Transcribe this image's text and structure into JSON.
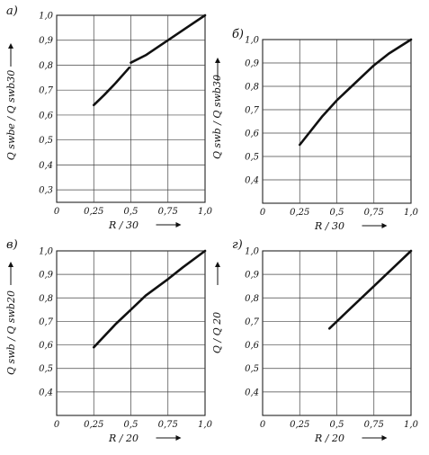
{
  "chart_data": [
    {
      "type": "line",
      "panel_label": "а)",
      "xlabel": "R / 30",
      "ylabel": "Q swbe / Q swb30",
      "xlim": [
        0,
        1.0
      ],
      "ylim": [
        0.25,
        1.0
      ],
      "x_ticks": [
        "0",
        "0,25",
        "0,5",
        "0,75",
        "1,0"
      ],
      "y_ticks": [
        "0,3",
        "0,4",
        "0,5",
        "0,6",
        "0,7",
        "0,8",
        "0,9",
        "1,0"
      ],
      "series": [
        {
          "segments": [
            {
              "x": [
                0.25,
                0.32,
                0.4,
                0.49
              ],
              "y": [
                0.64,
                0.68,
                0.73,
                0.79
              ]
            },
            {
              "x": [
                0.5,
                0.6,
                0.7,
                0.8,
                0.9,
                1.0
              ],
              "y": [
                0.81,
                0.84,
                0.88,
                0.92,
                0.96,
                1.0
              ]
            }
          ]
        }
      ]
    },
    {
      "type": "line",
      "panel_label": "б)",
      "xlabel": "R / 30",
      "ylabel": "Q swb / Q swb30",
      "xlim": [
        0,
        1.0
      ],
      "ylim": [
        0.3,
        1.0
      ],
      "x_ticks": [
        "0",
        "0,25",
        "0,5",
        "0,75",
        "1,0"
      ],
      "y_ticks": [
        "0,4",
        "0,5",
        "0,6",
        "0,7",
        "0,8",
        "0,9",
        "1,0"
      ],
      "series": [
        {
          "segments": [
            {
              "x": [
                0.25,
                0.4,
                0.5,
                0.6,
                0.75,
                0.85,
                1.0
              ],
              "y": [
                0.55,
                0.67,
                0.74,
                0.8,
                0.89,
                0.94,
                1.0
              ]
            }
          ]
        }
      ]
    },
    {
      "type": "line",
      "panel_label": "в)",
      "xlabel": "R / 20",
      "ylabel": "Q swb / Q swb20",
      "xlim": [
        0,
        1.0
      ],
      "ylim": [
        0.3,
        1.0
      ],
      "x_ticks": [
        "0",
        "0,25",
        "0,5",
        "0,75",
        "1,0"
      ],
      "y_ticks": [
        "0,4",
        "0,5",
        "0,6",
        "0,7",
        "0,8",
        "0,9",
        "1,0"
      ],
      "series": [
        {
          "segments": [
            {
              "x": [
                0.25,
                0.4,
                0.5,
                0.6,
                0.75,
                0.85,
                1.0
              ],
              "y": [
                0.59,
                0.69,
                0.75,
                0.81,
                0.88,
                0.93,
                1.0
              ]
            }
          ]
        }
      ]
    },
    {
      "type": "line",
      "panel_label": "г)",
      "xlabel": "R / 20",
      "ylabel": "Q / Q 20",
      "xlim": [
        0,
        1.0
      ],
      "ylim": [
        0.3,
        1.0
      ],
      "x_ticks": [
        "0",
        "0,25",
        "0,5",
        "0,75",
        "1,0"
      ],
      "y_ticks": [
        "0,4",
        "0,5",
        "0,6",
        "0,7",
        "0,8",
        "0,9",
        "1,0"
      ],
      "series": [
        {
          "segments": [
            {
              "x": [
                0.45,
                0.6,
                0.75,
                0.9,
                1.0
              ],
              "y": [
                0.67,
                0.76,
                0.85,
                0.94,
                1.0
              ]
            }
          ]
        }
      ]
    }
  ]
}
